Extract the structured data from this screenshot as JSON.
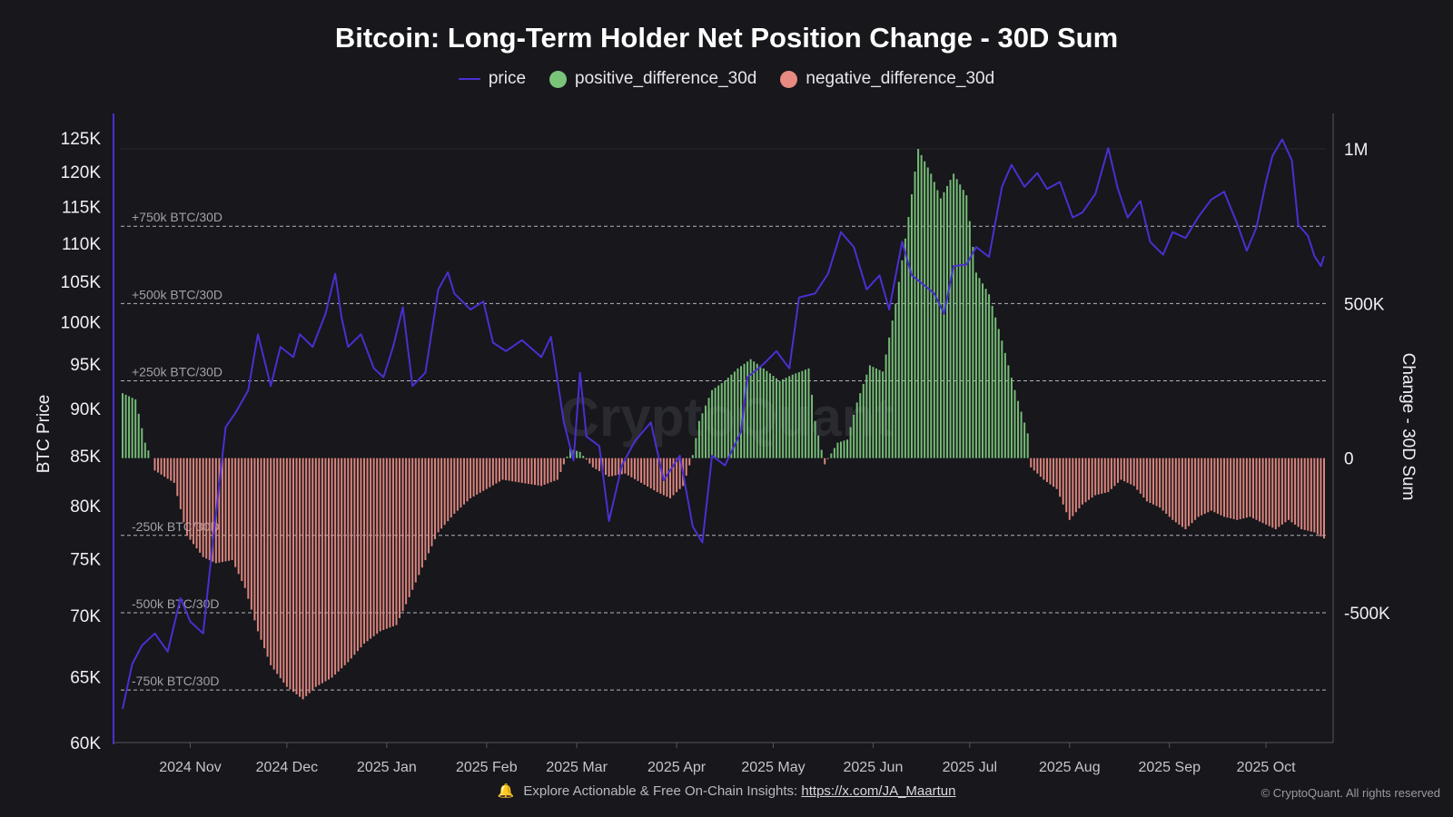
{
  "chart_data": {
    "type": "bar",
    "title": "Bitcoin: Long-Term Holder Net Position Change - 30D Sum",
    "ylabel_left": "BTC Price",
    "ylabel_right": "Change - 30D Sum",
    "left_axis": {
      "scale": "log",
      "range": [
        60000,
        125000
      ],
      "ticks": [
        60000,
        65000,
        70000,
        75000,
        80000,
        85000,
        90000,
        95000,
        100000,
        105000,
        110000,
        115000,
        120000,
        125000
      ],
      "tick_labels": [
        "60K",
        "65K",
        "70K",
        "75K",
        "80K",
        "85K",
        "90K",
        "95K",
        "100K",
        "105K",
        "110K",
        "115K",
        "120K",
        "125K"
      ]
    },
    "right_axis": {
      "range": [
        -920000,
        1100000
      ],
      "ticks": [
        -500000,
        0,
        500000,
        1000000
      ],
      "tick_labels": [
        "-500K",
        "0",
        "500K",
        "1M"
      ]
    },
    "x_axis": {
      "start": "2024-10-11",
      "end": "2025-10-19",
      "ticks": [
        "2024-11-01",
        "2024-12-01",
        "2025-01-01",
        "2025-02-01",
        "2025-03-01",
        "2025-04-01",
        "2025-05-01",
        "2025-06-01",
        "2025-07-01",
        "2025-08-01",
        "2025-09-01",
        "2025-10-01"
      ],
      "tick_labels": [
        "2024 Nov",
        "2024 Dec",
        "2025 Jan",
        "2025 Feb",
        "2025 Mar",
        "2025 Apr",
        "2025 May",
        "2025 Jun",
        "2025 Jul",
        "2025 Aug",
        "2025 Sep",
        "2025 Oct"
      ]
    },
    "reference_lines": [
      {
        "value": 750000,
        "label": "+750k BTC/30D"
      },
      {
        "value": 500000,
        "label": "+500k BTC/30D"
      },
      {
        "value": 250000,
        "label": "+250k BTC/30D"
      },
      {
        "value": -250000,
        "label": "-250k BTC/30D"
      },
      {
        "value": -500000,
        "label": "-500k BTC/30D"
      },
      {
        "value": -750000,
        "label": "-750k BTC/30D"
      }
    ],
    "series": [
      {
        "name": "price",
        "kind": "line",
        "axis": "left",
        "color": "#4b2fd0",
        "points": [
          [
            "2024-10-11",
            62500
          ],
          [
            "2024-10-14",
            66000
          ],
          [
            "2024-10-17",
            67500
          ],
          [
            "2024-10-21",
            68500
          ],
          [
            "2024-10-25",
            67000
          ],
          [
            "2024-10-29",
            71500
          ],
          [
            "2024-11-01",
            69500
          ],
          [
            "2024-11-05",
            68500
          ],
          [
            "2024-11-08",
            76500
          ],
          [
            "2024-11-12",
            88000
          ],
          [
            "2024-11-15",
            89500
          ],
          [
            "2024-11-19",
            92000
          ],
          [
            "2024-11-22",
            98500
          ],
          [
            "2024-11-26",
            92500
          ],
          [
            "2024-11-29",
            97000
          ],
          [
            "2024-12-03",
            95800
          ],
          [
            "2024-12-05",
            98500
          ],
          [
            "2024-12-09",
            97000
          ],
          [
            "2024-12-13",
            101000
          ],
          [
            "2024-12-16",
            106000
          ],
          [
            "2024-12-18",
            100500
          ],
          [
            "2024-12-20",
            97000
          ],
          [
            "2024-12-24",
            98500
          ],
          [
            "2024-12-28",
            94500
          ],
          [
            "2024-12-31",
            93500
          ],
          [
            "2025-01-03",
            97000
          ],
          [
            "2025-01-06",
            101800
          ],
          [
            "2025-01-09",
            92500
          ],
          [
            "2025-01-13",
            94000
          ],
          [
            "2025-01-17",
            104000
          ],
          [
            "2025-01-20",
            106200
          ],
          [
            "2025-01-22",
            103500
          ],
          [
            "2025-01-27",
            101500
          ],
          [
            "2025-01-31",
            102500
          ],
          [
            "2025-02-03",
            97500
          ],
          [
            "2025-02-07",
            96500
          ],
          [
            "2025-02-12",
            97800
          ],
          [
            "2025-02-18",
            95800
          ],
          [
            "2025-02-21",
            98200
          ],
          [
            "2025-02-25",
            88500
          ],
          [
            "2025-02-28",
            84500
          ],
          [
            "2025-03-02",
            94000
          ],
          [
            "2025-03-04",
            87000
          ],
          [
            "2025-03-08",
            86000
          ],
          [
            "2025-03-11",
            78500
          ],
          [
            "2025-03-15",
            84000
          ],
          [
            "2025-03-19",
            86500
          ],
          [
            "2025-03-24",
            88500
          ],
          [
            "2025-03-28",
            82500
          ],
          [
            "2025-04-02",
            85000
          ],
          [
            "2025-04-06",
            78000
          ],
          [
            "2025-04-09",
            76500
          ],
          [
            "2025-04-12",
            85000
          ],
          [
            "2025-04-16",
            84000
          ],
          [
            "2025-04-21",
            87500
          ],
          [
            "2025-04-23",
            93500
          ],
          [
            "2025-04-28",
            95000
          ],
          [
            "2025-05-02",
            96500
          ],
          [
            "2025-05-06",
            94500
          ],
          [
            "2025-05-09",
            103000
          ],
          [
            "2025-05-14",
            103500
          ],
          [
            "2025-05-18",
            106000
          ],
          [
            "2025-05-22",
            111500
          ],
          [
            "2025-05-26",
            109500
          ],
          [
            "2025-05-30",
            104000
          ],
          [
            "2025-06-03",
            105800
          ],
          [
            "2025-06-06",
            101500
          ],
          [
            "2025-06-10",
            110200
          ],
          [
            "2025-06-13",
            105800
          ],
          [
            "2025-06-17",
            104500
          ],
          [
            "2025-06-20",
            103500
          ],
          [
            "2025-06-23",
            101000
          ],
          [
            "2025-06-26",
            107000
          ],
          [
            "2025-06-30",
            107200
          ],
          [
            "2025-07-03",
            109500
          ],
          [
            "2025-07-07",
            108200
          ],
          [
            "2025-07-11",
            117800
          ],
          [
            "2025-07-14",
            121000
          ],
          [
            "2025-07-18",
            117800
          ],
          [
            "2025-07-22",
            119800
          ],
          [
            "2025-07-25",
            117500
          ],
          [
            "2025-07-29",
            118500
          ],
          [
            "2025-08-02",
            113500
          ],
          [
            "2025-08-05",
            114200
          ],
          [
            "2025-08-09",
            116800
          ],
          [
            "2025-08-13",
            123500
          ],
          [
            "2025-08-16",
            117500
          ],
          [
            "2025-08-19",
            113500
          ],
          [
            "2025-08-23",
            115800
          ],
          [
            "2025-08-26",
            110200
          ],
          [
            "2025-08-30",
            108500
          ],
          [
            "2025-09-02",
            111500
          ],
          [
            "2025-09-06",
            110700
          ],
          [
            "2025-09-10",
            113600
          ],
          [
            "2025-09-14",
            116000
          ],
          [
            "2025-09-18",
            117100
          ],
          [
            "2025-09-22",
            112700
          ],
          [
            "2025-09-25",
            109000
          ],
          [
            "2025-09-28",
            112100
          ],
          [
            "2025-10-01",
            118600
          ],
          [
            "2025-10-03",
            122300
          ],
          [
            "2025-10-06",
            124800
          ],
          [
            "2025-10-09",
            121700
          ],
          [
            "2025-10-11",
            112500
          ],
          [
            "2025-10-14",
            111000
          ],
          [
            "2025-10-16",
            108300
          ],
          [
            "2025-10-18",
            107000
          ],
          [
            "2025-10-19",
            108300
          ]
        ]
      },
      {
        "name": "positive_difference_30d",
        "kind": "bar",
        "axis": "right",
        "color": "#7ac47a"
      },
      {
        "name": "negative_difference_30d",
        "kind": "bar",
        "axis": "right",
        "color": "#e68a82"
      }
    ],
    "net_change_30d_sum": [
      [
        "2024-10-11",
        210000
      ],
      [
        "2024-10-15",
        190000
      ],
      [
        "2024-10-18",
        50000
      ],
      [
        "2024-10-20",
        0
      ],
      [
        "2024-10-21",
        -40000
      ],
      [
        "2024-10-24",
        -60000
      ],
      [
        "2024-10-27",
        -80000
      ],
      [
        "2024-10-31",
        -250000
      ],
      [
        "2024-11-05",
        -320000
      ],
      [
        "2024-11-09",
        -340000
      ],
      [
        "2024-11-14",
        -330000
      ],
      [
        "2024-11-18",
        -420000
      ],
      [
        "2024-11-22",
        -560000
      ],
      [
        "2024-11-26",
        -670000
      ],
      [
        "2024-12-01",
        -740000
      ],
      [
        "2024-12-06",
        -780000
      ],
      [
        "2024-12-10",
        -740000
      ],
      [
        "2024-12-15",
        -710000
      ],
      [
        "2024-12-20",
        -660000
      ],
      [
        "2024-12-25",
        -600000
      ],
      [
        "2024-12-30",
        -560000
      ],
      [
        "2025-01-04",
        -540000
      ],
      [
        "2025-01-08",
        -450000
      ],
      [
        "2025-01-13",
        -330000
      ],
      [
        "2025-01-17",
        -240000
      ],
      [
        "2025-01-22",
        -180000
      ],
      [
        "2025-01-27",
        -130000
      ],
      [
        "2025-02-01",
        -100000
      ],
      [
        "2025-02-06",
        -70000
      ],
      [
        "2025-02-12",
        -80000
      ],
      [
        "2025-02-18",
        -90000
      ],
      [
        "2025-02-23",
        -70000
      ],
      [
        "2025-02-27",
        30000
      ],
      [
        "2025-03-02",
        20000
      ],
      [
        "2025-03-06",
        -30000
      ],
      [
        "2025-03-11",
        -60000
      ],
      [
        "2025-03-16",
        -50000
      ],
      [
        "2025-03-21",
        -80000
      ],
      [
        "2025-03-26",
        -110000
      ],
      [
        "2025-03-30",
        -130000
      ],
      [
        "2025-04-03",
        -90000
      ],
      [
        "2025-04-06",
        10000
      ],
      [
        "2025-04-08",
        120000
      ],
      [
        "2025-04-12",
        220000
      ],
      [
        "2025-04-16",
        250000
      ],
      [
        "2025-04-20",
        290000
      ],
      [
        "2025-04-24",
        320000
      ],
      [
        "2025-04-28",
        290000
      ],
      [
        "2025-05-03",
        250000
      ],
      [
        "2025-05-07",
        270000
      ],
      [
        "2025-05-12",
        290000
      ],
      [
        "2025-05-14",
        120000
      ],
      [
        "2025-05-17",
        -20000
      ],
      [
        "2025-05-21",
        50000
      ],
      [
        "2025-05-24",
        60000
      ],
      [
        "2025-05-27",
        180000
      ],
      [
        "2025-05-31",
        300000
      ],
      [
        "2025-06-04",
        280000
      ],
      [
        "2025-06-08",
        500000
      ],
      [
        "2025-06-12",
        780000
      ],
      [
        "2025-06-15",
        1000000
      ],
      [
        "2025-06-19",
        920000
      ],
      [
        "2025-06-22",
        840000
      ],
      [
        "2025-06-26",
        920000
      ],
      [
        "2025-06-30",
        850000
      ],
      [
        "2025-07-03",
        600000
      ],
      [
        "2025-07-07",
        530000
      ],
      [
        "2025-07-11",
        380000
      ],
      [
        "2025-07-15",
        220000
      ],
      [
        "2025-07-19",
        80000
      ],
      [
        "2025-07-20",
        -30000
      ],
      [
        "2025-07-24",
        -70000
      ],
      [
        "2025-07-28",
        -100000
      ],
      [
        "2025-08-01",
        -200000
      ],
      [
        "2025-08-05",
        -150000
      ],
      [
        "2025-08-09",
        -120000
      ],
      [
        "2025-08-13",
        -110000
      ],
      [
        "2025-08-17",
        -70000
      ],
      [
        "2025-08-21",
        -90000
      ],
      [
        "2025-08-25",
        -140000
      ],
      [
        "2025-08-29",
        -160000
      ],
      [
        "2025-09-02",
        -200000
      ],
      [
        "2025-09-06",
        -230000
      ],
      [
        "2025-09-10",
        -190000
      ],
      [
        "2025-09-14",
        -170000
      ],
      [
        "2025-09-18",
        -190000
      ],
      [
        "2025-09-22",
        -200000
      ],
      [
        "2025-09-26",
        -190000
      ],
      [
        "2025-09-30",
        -210000
      ],
      [
        "2025-10-04",
        -230000
      ],
      [
        "2025-10-08",
        -200000
      ],
      [
        "2025-10-12",
        -230000
      ],
      [
        "2025-10-16",
        -240000
      ],
      [
        "2025-10-19",
        -260000
      ]
    ]
  },
  "footer": {
    "text": "Explore Actionable & Free On-Chain Insights:",
    "link": "https://x.com/JA_Maartun",
    "copyright": "© CryptoQuant. All rights reserved"
  },
  "watermark": "CryptoQuant",
  "icons": {
    "footer_icon": "bell-icon"
  }
}
